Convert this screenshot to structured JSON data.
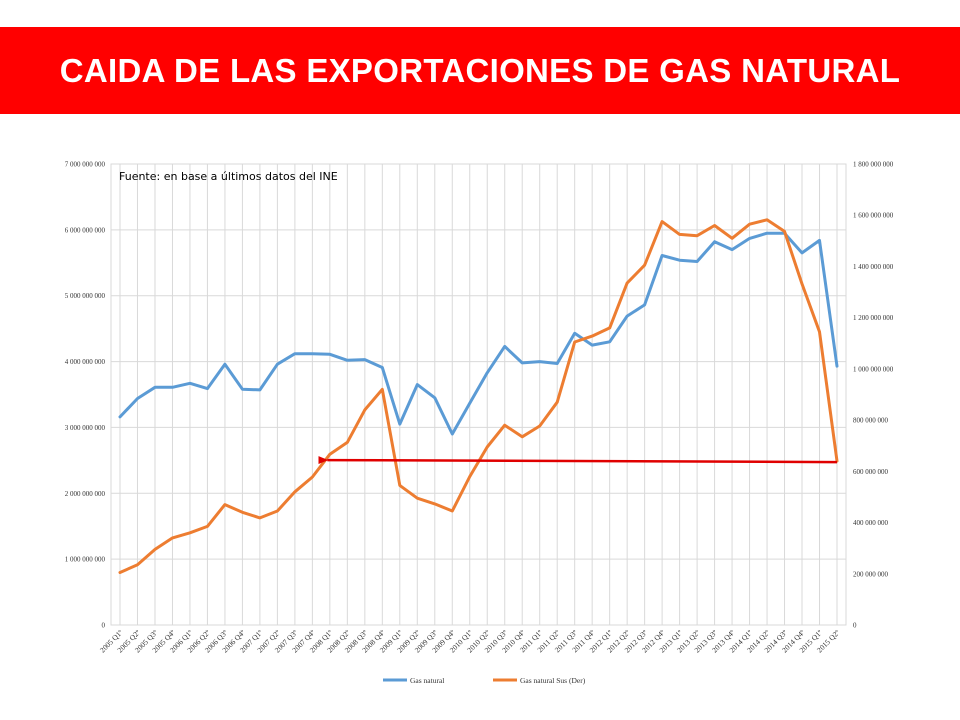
{
  "banner": {
    "title": "CAIDA DE LAS EXPORTACIONES DE GAS NATURAL"
  },
  "colors": {
    "banner_bg": "#ff0000",
    "series1": "#5b9bd5",
    "series2": "#ed7d31",
    "arrow": "#e00000",
    "grid": "#d9d9d9"
  },
  "chart_data": {
    "type": "line",
    "annotation": "Fuente: en base a últimos datos del INE",
    "x": [
      "2005 Q1º",
      "2005 Q2º",
      "2005 Q3º",
      "2005 Q4º",
      "2006 Q1º",
      "2006 Q2º",
      "2006 Q3º",
      "2006 Q4º",
      "2007 Q1º",
      "2007 Q2º",
      "2007 Q3º",
      "2007 Q4º",
      "2008 Q1º",
      "2008 Q2º",
      "2008 Q3º",
      "2008 Q4º",
      "2009 Q1º",
      "2009 Q2º",
      "2009 Q3º",
      "2009 Q4º",
      "2010 Q1º",
      "2010 Q2º",
      "2010 Q3º",
      "2010 Q4º",
      "2011 Q1º",
      "2011 Q2º",
      "2011 Q3º",
      "2011 Q4º",
      "2012 Q1º",
      "2012 Q2º",
      "2012 Q3º",
      "2012 Q4º",
      "2013 Q1º",
      "2013 Q2º",
      "2013 Q3º",
      "2013 Q4º",
      "2014 Q1º",
      "2014 Q2º",
      "2014 Q3º",
      "2014 Q4º",
      "2015 Q1º",
      "2015 Q2º"
    ],
    "x_tick_labels": [
      "2005 Q1º",
      "2005 Q2º",
      "2005 Q3º",
      "2005 Q4º",
      "2006 Q1º",
      "2006 Q2º",
      "2006 Q3º",
      "2006 Q4º",
      "2007 Q1º",
      "2007 Q2º",
      "2007 Q3º",
      "2007 Q4º",
      "2008 Q1º",
      "2008 Q2º",
      "2008 Q3º",
      "2008 Q4º",
      "2009 Q1º",
      "2009 Q2º",
      "2009 Q3º",
      "2009 Q4º",
      "2010 Q1º",
      "2010 Q2º",
      "2010 Q3º",
      "2010 Q4º",
      "2011 Q1º",
      "2011 Q2º",
      "2011 Q3º",
      "2011 Q4º",
      "2012 Q1º",
      "2012 Q2º",
      "2012 Q3º",
      "2012 Q4º",
      "2013 Q1º",
      "2013 Q2º",
      "2013 Q3º",
      "2013 Q4º",
      "2014 Q1º",
      "2014 Q2º",
      "2014 Q3º",
      "2014 Q4º",
      "2015 Q1º",
      "2015 Q2º"
    ],
    "y_left": {
      "lim": [
        0,
        7000000000
      ],
      "ticks": [
        0,
        1000000000,
        2000000000,
        3000000000,
        4000000000,
        5000000000,
        6000000000,
        7000000000
      ],
      "tick_labels": [
        "0",
        "1 000 000 000",
        "2 000 000 000",
        "3 000 000 000",
        "4 000 000 000",
        "5 000 000 000",
        "6 000 000 000",
        "7 000 000 000"
      ]
    },
    "y_right": {
      "lim": [
        0,
        1800000000
      ],
      "ticks": [
        0,
        200000000,
        400000000,
        600000000,
        800000000,
        1000000000,
        1200000000,
        1400000000,
        1600000000,
        1800000000
      ],
      "tick_labels": [
        "0",
        "200 000 000",
        "400 000 000",
        "600 000 000",
        "800 000 000",
        "1 000 000 000",
        "1 200 000 000",
        "1 400 000 000",
        "1 600 000 000",
        "1 800 000 000"
      ]
    },
    "grid": true,
    "legend_position": "bottom",
    "series": [
      {
        "name": "Gas natural",
        "axis": "left",
        "values": [
          3160000000,
          3440000000,
          3610000000,
          3610000000,
          3670000000,
          3590000000,
          3960000000,
          3580000000,
          3570000000,
          3960000000,
          4120000000,
          4120000000,
          4110000000,
          4020000000,
          4030000000,
          3910000000,
          3050000000,
          3650000000,
          3450000000,
          2900000000,
          3370000000,
          3830000000,
          4230000000,
          3980000000,
          4000000000,
          3970000000,
          4430000000,
          4250000000,
          4300000000,
          4690000000,
          4860000000,
          5610000000,
          5540000000,
          5520000000,
          5820000000,
          5700000000,
          5870000000,
          5950000000,
          5950000000,
          5650000000,
          5840000000,
          3930000000
        ]
      },
      {
        "name": "Gas natural Sus (Der)",
        "axis": "right",
        "values": [
          205000000,
          235000000,
          295000000,
          340000000,
          360000000,
          385000000,
          470000000,
          440000000,
          418000000,
          445000000,
          520000000,
          578000000,
          667000000,
          713000000,
          840000000,
          920000000,
          545000000,
          495000000,
          473000000,
          445000000,
          580000000,
          695000000,
          780000000,
          735000000,
          777000000,
          870000000,
          1105000000,
          1128000000,
          1160000000,
          1335000000,
          1405000000,
          1575000000,
          1525000000,
          1520000000,
          1560000000,
          1510000000,
          1565000000,
          1582000000,
          1537000000,
          1332000000,
          1145000000,
          640000000
        ]
      }
    ]
  }
}
